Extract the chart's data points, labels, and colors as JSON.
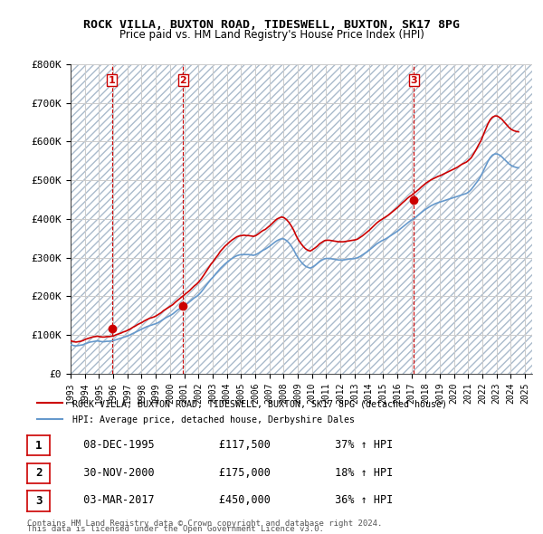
{
  "title": "ROCK VILLA, BUXTON ROAD, TIDESWELL, BUXTON, SK17 8PG",
  "subtitle": "Price paid vs. HM Land Registry's House Price Index (HPI)",
  "legend_line1": "ROCK VILLA, BUXTON ROAD, TIDESWELL, BUXTON, SK17 8PG (detached house)",
  "legend_line2": "HPI: Average price, detached house, Derbyshire Dales",
  "footer_line1": "Contains HM Land Registry data © Crown copyright and database right 2024.",
  "footer_line2": "This data is licensed under the Open Government Licence v3.0.",
  "sale_color": "#cc0000",
  "hpi_color": "#6699cc",
  "background_color": "#ffffff",
  "plot_bg_color": "#ffffff",
  "hatch_color": "#ccddee",
  "grid_color": "#cccccc",
  "ylim": [
    0,
    800000
  ],
  "yticks": [
    0,
    100000,
    200000,
    300000,
    400000,
    500000,
    600000,
    700000,
    800000
  ],
  "ytick_labels": [
    "£0",
    "£100K",
    "£200K",
    "£300K",
    "£400K",
    "£500K",
    "£600K",
    "£700K",
    "£800K"
  ],
  "xlim_start": 1993.0,
  "xlim_end": 2025.5,
  "xticks": [
    1993,
    1994,
    1995,
    1996,
    1997,
    1998,
    1999,
    2000,
    2001,
    2002,
    2003,
    2004,
    2005,
    2006,
    2007,
    2008,
    2009,
    2010,
    2011,
    2012,
    2013,
    2014,
    2015,
    2016,
    2017,
    2018,
    2019,
    2020,
    2021,
    2022,
    2023,
    2024,
    2025
  ],
  "sales": [
    {
      "year": 1995.92,
      "price": 117500,
      "label": "1"
    },
    {
      "year": 2000.91,
      "price": 175000,
      "label": "2"
    },
    {
      "year": 2017.17,
      "price": 450000,
      "label": "3"
    }
  ],
  "sale_vlines": [
    1995.92,
    2000.91,
    2017.17
  ],
  "table_rows": [
    {
      "num": "1",
      "date": "08-DEC-1995",
      "price": "£117,500",
      "hpi": "37% ↑ HPI"
    },
    {
      "num": "2",
      "date": "30-NOV-2000",
      "price": "£175,000",
      "hpi": "18% ↑ HPI"
    },
    {
      "num": "3",
      "date": "03-MAR-2017",
      "price": "£450,000",
      "hpi": "36% ↑ HPI"
    }
  ],
  "hpi_data": {
    "years": [
      1993.04,
      1993.21,
      1993.38,
      1993.54,
      1993.71,
      1993.88,
      1994.04,
      1994.21,
      1994.38,
      1994.54,
      1994.71,
      1994.88,
      1995.04,
      1995.21,
      1995.38,
      1995.54,
      1995.71,
      1995.88,
      1996.04,
      1996.21,
      1996.38,
      1996.54,
      1996.71,
      1996.88,
      1997.04,
      1997.21,
      1997.38,
      1997.54,
      1997.71,
      1997.88,
      1998.04,
      1998.21,
      1998.38,
      1998.54,
      1998.71,
      1998.88,
      1999.04,
      1999.21,
      1999.38,
      1999.54,
      1999.71,
      1999.88,
      2000.04,
      2000.21,
      2000.38,
      2000.54,
      2000.71,
      2000.88,
      2001.04,
      2001.21,
      2001.38,
      2001.54,
      2001.71,
      2001.88,
      2002.04,
      2002.21,
      2002.38,
      2002.54,
      2002.71,
      2002.88,
      2003.04,
      2003.21,
      2003.38,
      2003.54,
      2003.71,
      2003.88,
      2004.04,
      2004.21,
      2004.38,
      2004.54,
      2004.71,
      2004.88,
      2005.04,
      2005.21,
      2005.38,
      2005.54,
      2005.71,
      2005.88,
      2006.04,
      2006.21,
      2006.38,
      2006.54,
      2006.71,
      2006.88,
      2007.04,
      2007.21,
      2007.38,
      2007.54,
      2007.71,
      2007.88,
      2008.04,
      2008.21,
      2008.38,
      2008.54,
      2008.71,
      2008.88,
      2009.04,
      2009.21,
      2009.38,
      2009.54,
      2009.71,
      2009.88,
      2010.04,
      2010.21,
      2010.38,
      2010.54,
      2010.71,
      2010.88,
      2011.04,
      2011.21,
      2011.38,
      2011.54,
      2011.71,
      2011.88,
      2012.04,
      2012.21,
      2012.38,
      2012.54,
      2012.71,
      2012.88,
      2013.04,
      2013.21,
      2013.38,
      2013.54,
      2013.71,
      2013.88,
      2014.04,
      2014.21,
      2014.38,
      2014.54,
      2014.71,
      2014.88,
      2015.04,
      2015.21,
      2015.38,
      2015.54,
      2015.71,
      2015.88,
      2016.04,
      2016.21,
      2016.38,
      2016.54,
      2016.71,
      2016.88,
      2017.04,
      2017.21,
      2017.38,
      2017.54,
      2017.71,
      2017.88,
      2018.04,
      2018.21,
      2018.38,
      2018.54,
      2018.71,
      2018.88,
      2019.04,
      2019.21,
      2019.38,
      2019.54,
      2019.71,
      2019.88,
      2020.04,
      2020.21,
      2020.38,
      2020.54,
      2020.71,
      2020.88,
      2021.04,
      2021.21,
      2021.38,
      2021.54,
      2021.71,
      2021.88,
      2022.04,
      2022.21,
      2022.38,
      2022.54,
      2022.71,
      2022.88,
      2023.04,
      2023.21,
      2023.38,
      2023.54,
      2023.71,
      2023.88,
      2024.04,
      2024.21,
      2024.38,
      2024.54
    ],
    "values": [
      75000,
      73000,
      72000,
      73000,
      74000,
      75000,
      78000,
      80000,
      82000,
      83000,
      84000,
      85000,
      84000,
      83000,
      83000,
      84000,
      84000,
      85000,
      86000,
      88000,
      90000,
      92000,
      94000,
      96000,
      98000,
      101000,
      104000,
      107000,
      110000,
      113000,
      116000,
      119000,
      122000,
      124000,
      126000,
      128000,
      130000,
      133000,
      137000,
      141000,
      145000,
      148000,
      151000,
      155000,
      160000,
      165000,
      169000,
      173000,
      177000,
      181000,
      186000,
      191000,
      196000,
      200000,
      205000,
      212000,
      220000,
      228000,
      236000,
      244000,
      250000,
      258000,
      265000,
      272000,
      278000,
      284000,
      289000,
      294000,
      298000,
      302000,
      305000,
      307000,
      308000,
      308000,
      308000,
      308000,
      307000,
      306000,
      308000,
      311000,
      315000,
      319000,
      322000,
      326000,
      330000,
      335000,
      340000,
      344000,
      347000,
      349000,
      348000,
      344000,
      338000,
      330000,
      320000,
      308000,
      298000,
      290000,
      283000,
      278000,
      275000,
      273000,
      276000,
      280000,
      285000,
      290000,
      294000,
      297000,
      298000,
      298000,
      297000,
      296000,
      295000,
      294000,
      294000,
      294000,
      295000,
      296000,
      297000,
      297000,
      298000,
      300000,
      303000,
      307000,
      311000,
      315000,
      320000,
      325000,
      330000,
      335000,
      339000,
      343000,
      346000,
      349000,
      353000,
      357000,
      361000,
      365000,
      369000,
      374000,
      379000,
      384000,
      389000,
      394000,
      398000,
      402000,
      407000,
      412000,
      417000,
      422000,
      426000,
      430000,
      434000,
      437000,
      440000,
      442000,
      444000,
      446000,
      448000,
      450000,
      452000,
      454000,
      456000,
      458000,
      460000,
      462000,
      464000,
      466000,
      470000,
      476000,
      484000,
      492000,
      500000,
      510000,
      522000,
      535000,
      548000,
      558000,
      565000,
      568000,
      568000,
      565000,
      560000,
      554000,
      548000,
      542000,
      538000,
      535000,
      533000,
      532000
    ]
  },
  "sale_line_data": {
    "years": [
      1993.04,
      1993.21,
      1993.38,
      1993.54,
      1993.71,
      1993.88,
      1994.04,
      1994.21,
      1994.38,
      1994.54,
      1994.71,
      1994.88,
      1995.04,
      1995.21,
      1995.38,
      1995.54,
      1995.71,
      1995.88,
      1996.04,
      1996.21,
      1996.38,
      1996.54,
      1996.71,
      1996.88,
      1997.04,
      1997.21,
      1997.38,
      1997.54,
      1997.71,
      1997.88,
      1998.04,
      1998.21,
      1998.38,
      1998.54,
      1998.71,
      1998.88,
      1999.04,
      1999.21,
      1999.38,
      1999.54,
      1999.71,
      1999.88,
      2000.04,
      2000.21,
      2000.38,
      2000.54,
      2000.71,
      2000.88,
      2001.04,
      2001.21,
      2001.38,
      2001.54,
      2001.71,
      2001.88,
      2002.04,
      2002.21,
      2002.38,
      2002.54,
      2002.71,
      2002.88,
      2003.04,
      2003.21,
      2003.38,
      2003.54,
      2003.71,
      2003.88,
      2004.04,
      2004.21,
      2004.38,
      2004.54,
      2004.71,
      2004.88,
      2005.04,
      2005.21,
      2005.38,
      2005.54,
      2005.71,
      2005.88,
      2006.04,
      2006.21,
      2006.38,
      2006.54,
      2006.71,
      2006.88,
      2007.04,
      2007.21,
      2007.38,
      2007.54,
      2007.71,
      2007.88,
      2008.04,
      2008.21,
      2008.38,
      2008.54,
      2008.71,
      2008.88,
      2009.04,
      2009.21,
      2009.38,
      2009.54,
      2009.71,
      2009.88,
      2010.04,
      2010.21,
      2010.38,
      2010.54,
      2010.71,
      2010.88,
      2011.04,
      2011.21,
      2011.38,
      2011.54,
      2011.71,
      2011.88,
      2012.04,
      2012.21,
      2012.38,
      2012.54,
      2012.71,
      2012.88,
      2013.04,
      2013.21,
      2013.38,
      2013.54,
      2013.71,
      2013.88,
      2014.04,
      2014.21,
      2014.38,
      2014.54,
      2014.71,
      2014.88,
      2015.04,
      2015.21,
      2015.38,
      2015.54,
      2015.71,
      2015.88,
      2016.04,
      2016.21,
      2016.38,
      2016.54,
      2016.71,
      2016.88,
      2017.04,
      2017.21,
      2017.38,
      2017.54,
      2017.71,
      2017.88,
      2018.04,
      2018.21,
      2018.38,
      2018.54,
      2018.71,
      2018.88,
      2019.04,
      2019.21,
      2019.38,
      2019.54,
      2019.71,
      2019.88,
      2020.04,
      2020.21,
      2020.38,
      2020.54,
      2020.71,
      2020.88,
      2021.04,
      2021.21,
      2021.38,
      2021.54,
      2021.71,
      2021.88,
      2022.04,
      2022.21,
      2022.38,
      2022.54,
      2022.71,
      2022.88,
      2023.04,
      2023.21,
      2023.38,
      2023.54,
      2023.71,
      2023.88,
      2024.04,
      2024.21,
      2024.38,
      2024.54
    ],
    "values": [
      85000,
      83000,
      82000,
      83000,
      84000,
      86000,
      89000,
      91000,
      93000,
      95000,
      96000,
      97000,
      96000,
      95000,
      95000,
      96000,
      96000,
      97000,
      98000,
      101000,
      103000,
      105000,
      108000,
      110000,
      113000,
      116000,
      120000,
      123000,
      127000,
      130000,
      133000,
      137000,
      140000,
      143000,
      145000,
      147000,
      150000,
      154000,
      158000,
      163000,
      167000,
      171000,
      175000,
      179000,
      185000,
      190000,
      195000,
      200000,
      205000,
      210000,
      215000,
      221000,
      227000,
      232000,
      238000,
      246000,
      255000,
      264000,
      274000,
      283000,
      290000,
      299000,
      307000,
      316000,
      323000,
      330000,
      335000,
      341000,
      346000,
      350000,
      354000,
      356000,
      357000,
      358000,
      357000,
      357000,
      356000,
      355000,
      357000,
      361000,
      366000,
      370000,
      373000,
      378000,
      383000,
      389000,
      395000,
      400000,
      403000,
      405000,
      403000,
      398000,
      391000,
      382000,
      371000,
      357000,
      346000,
      337000,
      329000,
      323000,
      319000,
      317000,
      321000,
      325000,
      330000,
      336000,
      340000,
      344000,
      345000,
      345000,
      344000,
      343000,
      342000,
      341000,
      341000,
      341000,
      342000,
      343000,
      344000,
      345000,
      346000,
      348000,
      352000,
      356000,
      361000,
      366000,
      371000,
      377000,
      383000,
      389000,
      394000,
      398000,
      402000,
      406000,
      410000,
      415000,
      420000,
      425000,
      430000,
      436000,
      442000,
      447000,
      453000,
      458000,
      462000,
      467000,
      472000,
      477000,
      483000,
      488000,
      493000,
      497000,
      501000,
      504000,
      507000,
      510000,
      512000,
      515000,
      518000,
      521000,
      524000,
      527000,
      530000,
      533000,
      537000,
      541000,
      544000,
      547000,
      552000,
      558000,
      568000,
      578000,
      590000,
      601000,
      615000,
      630000,
      645000,
      656000,
      663000,
      666000,
      666000,
      662000,
      657000,
      650000,
      643000,
      636000,
      631000,
      628000,
      626000,
      625000
    ]
  }
}
